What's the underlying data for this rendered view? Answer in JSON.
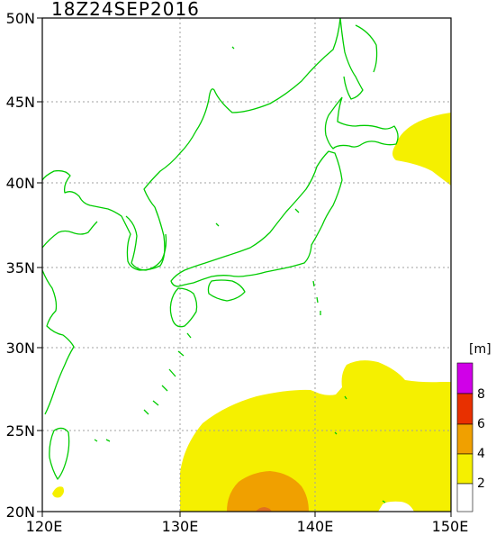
{
  "title": "18Z24SEP2016",
  "lat_labels": [
    "50N",
    "45N",
    "40N",
    "35N",
    "30N",
    "25N",
    "20N"
  ],
  "lon_labels": [
    "120E",
    "130E",
    "140E",
    "150E"
  ],
  "legend": {
    "unit": "[m]",
    "labels": [
      "8",
      "6",
      "4",
      "2"
    ],
    "colors": [
      "#d000e8",
      "#e83000",
      "#f0a000",
      "#f5f000",
      "#ffffff"
    ]
  },
  "colors": {
    "coast": "#00cc00",
    "grid": "#a0a0a0",
    "level_2": "#f5f000",
    "level_4": "#f0a000"
  }
}
